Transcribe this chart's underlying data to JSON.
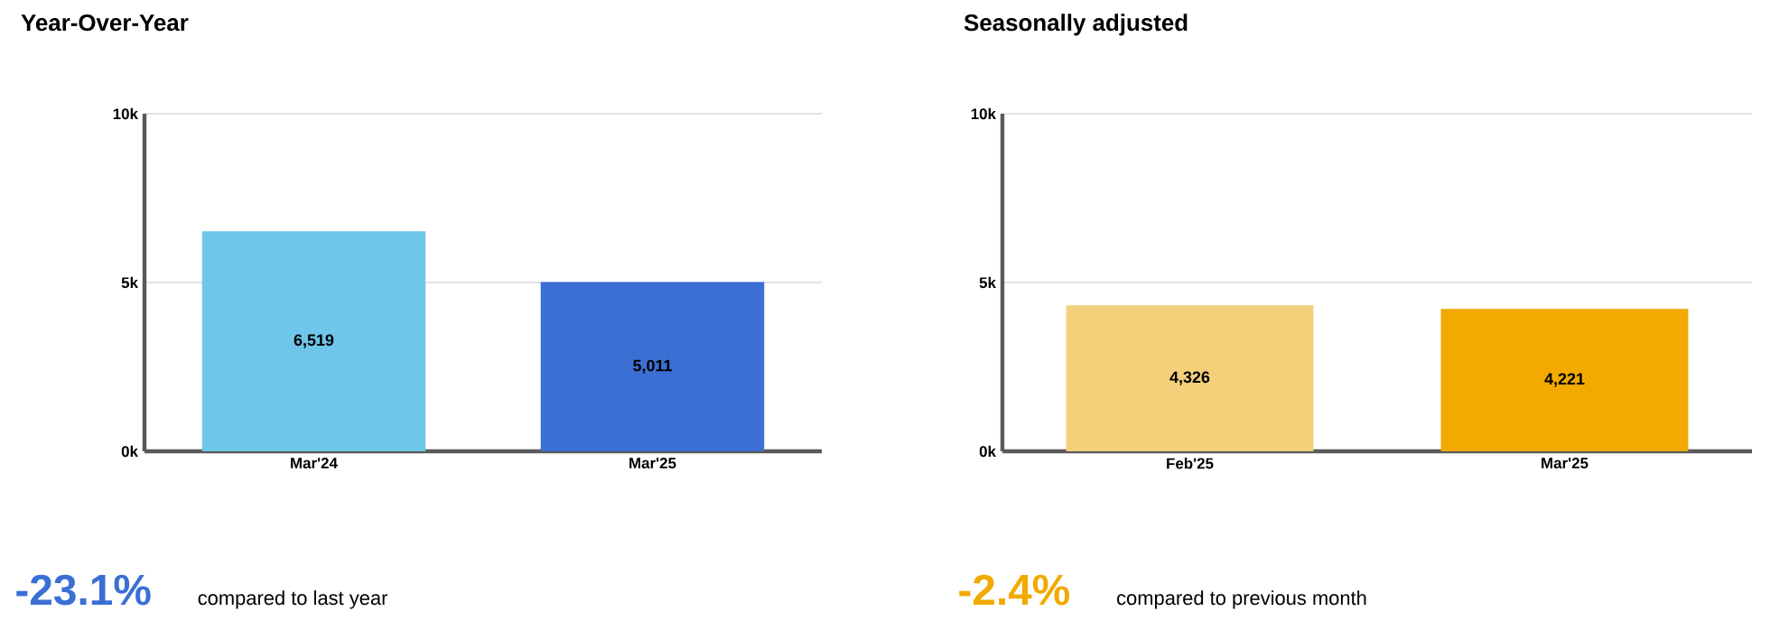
{
  "chart_data": [
    {
      "type": "bar",
      "title": "Year-Over-Year",
      "categories": [
        "Mar'24",
        "Mar'25"
      ],
      "values": [
        6519,
        5011
      ],
      "colors": [
        "#6ec6ea",
        "#3b6fd4"
      ],
      "value_labels": [
        "6,519",
        "5,011"
      ],
      "ylim": [
        0,
        10000
      ],
      "yticks": [
        {
          "value": 0,
          "label": "0k"
        },
        {
          "value": 5000,
          "label": "5k"
        },
        {
          "value": 10000,
          "label": "10k"
        }
      ],
      "grid": "y",
      "annotations": [
        "-23.1%",
        "compared to last year"
      ]
    },
    {
      "type": "bar",
      "title": "Seasonally adjusted",
      "categories": [
        "Feb'25",
        "Mar'25"
      ],
      "values": [
        4326,
        4221
      ],
      "colors": [
        "#f5d07a",
        "#f2a900"
      ],
      "value_labels": [
        "4,326",
        "4,221"
      ],
      "ylim": [
        0,
        10000
      ],
      "yticks": [
        {
          "value": 0,
          "label": "0k"
        },
        {
          "value": 5000,
          "label": "5k"
        },
        {
          "value": 10000,
          "label": "10k"
        }
      ],
      "grid": "y",
      "annotations": [
        "-2.4%",
        "compared to previous month"
      ]
    }
  ]
}
